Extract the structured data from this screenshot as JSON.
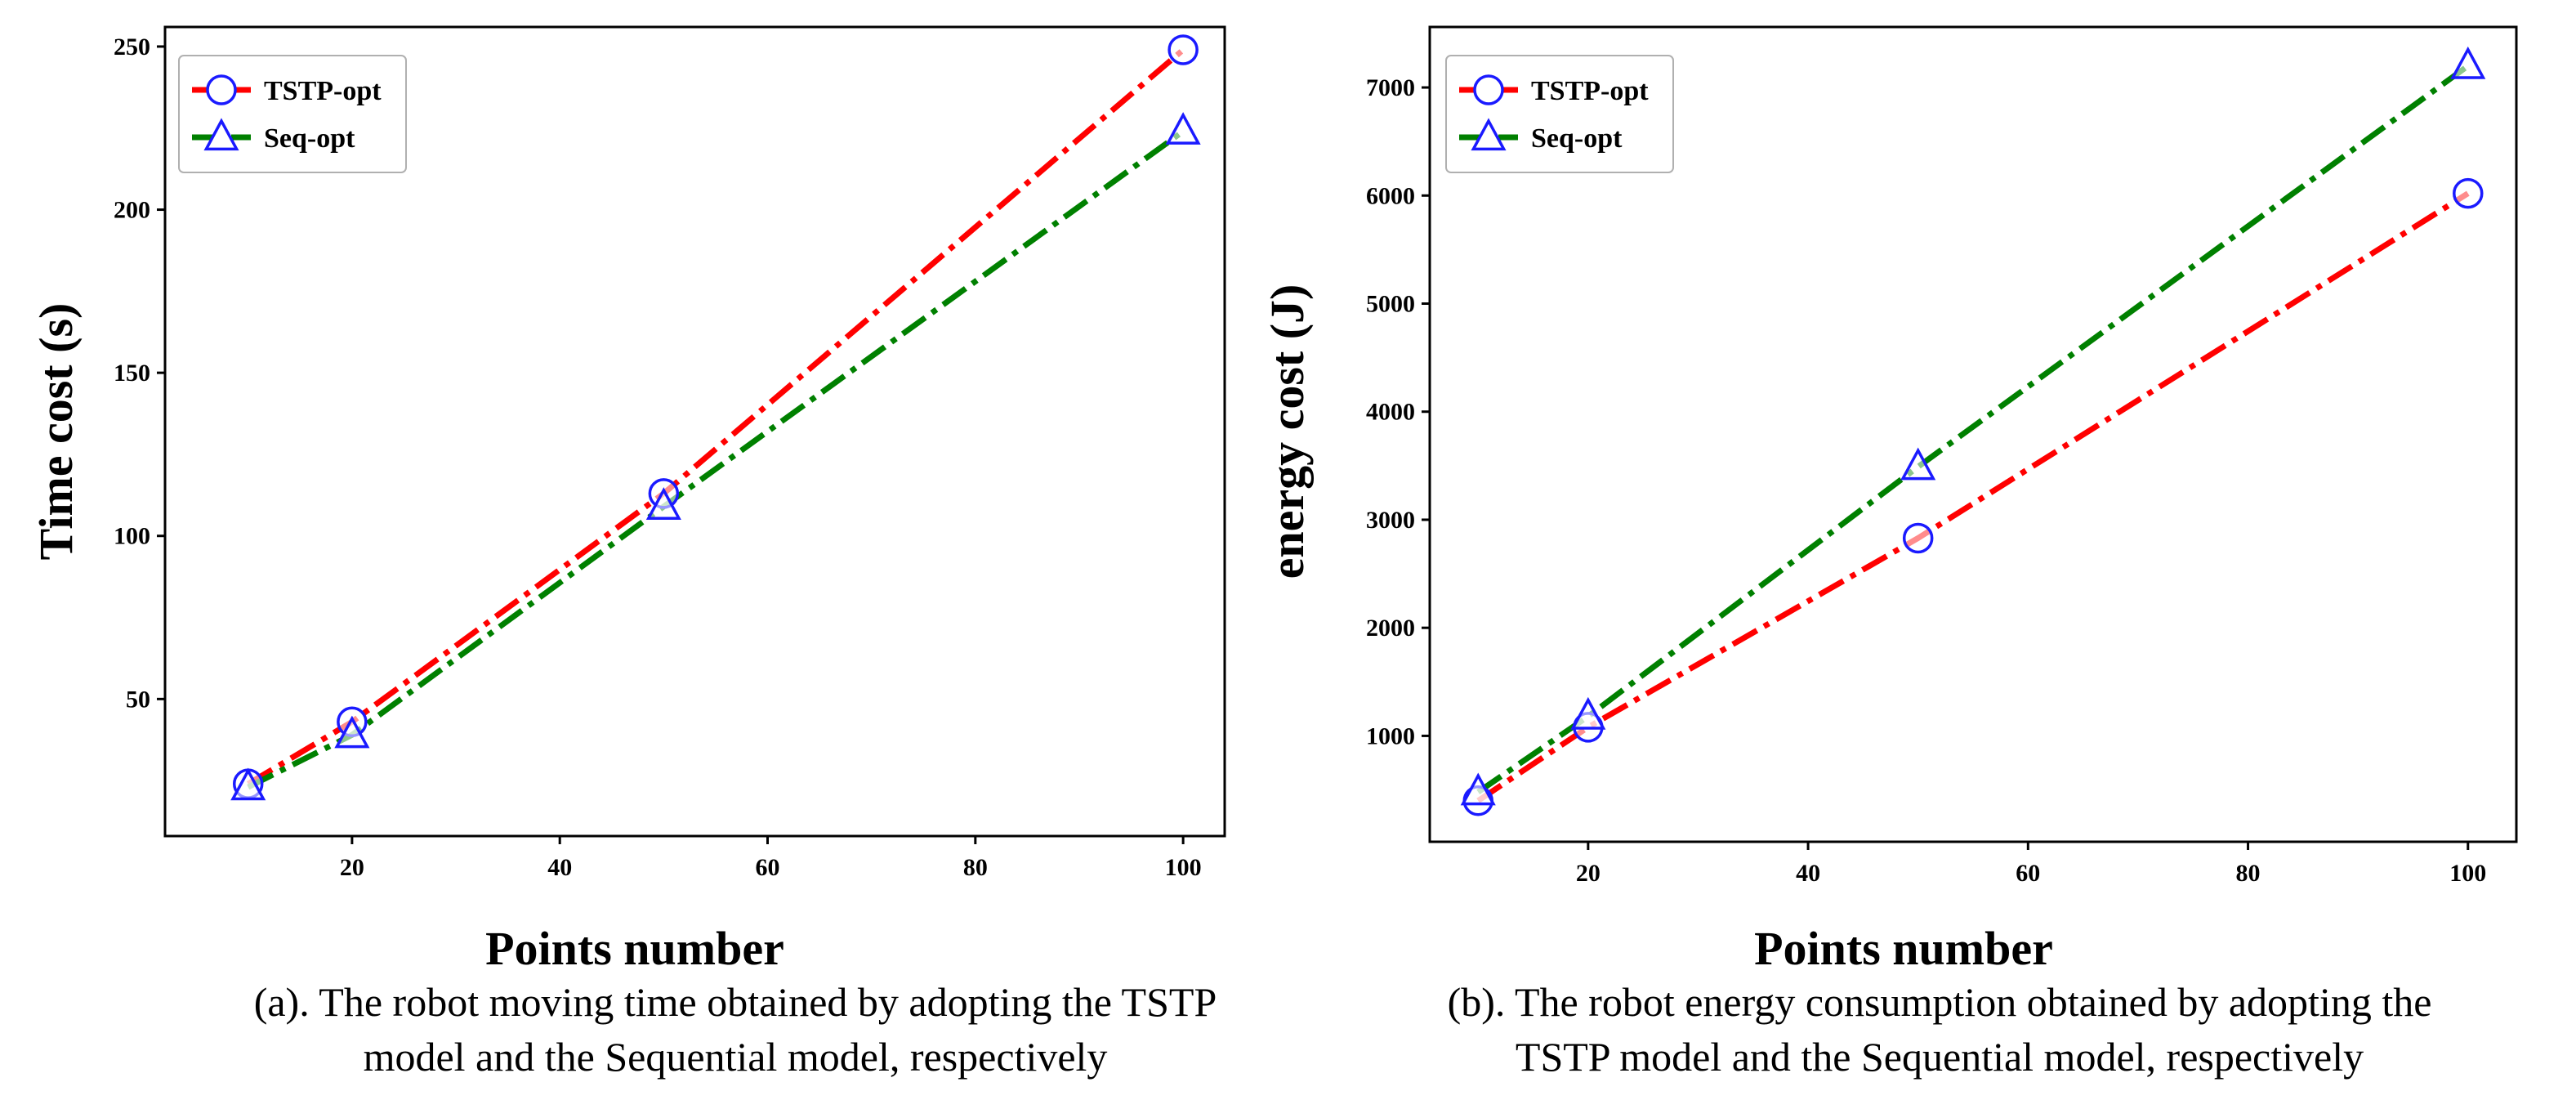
{
  "chart_data": [
    {
      "id": "a",
      "type": "line",
      "x": [
        10,
        20,
        50,
        100
      ],
      "series": [
        {
          "name": "TSTP-opt",
          "values": [
            24,
            43,
            113,
            249
          ],
          "color": "#ff0000",
          "marker": "circle",
          "marker_color": "#1a1aff"
        },
        {
          "name": "Seq-opt",
          "values": [
            23,
            39,
            109,
            224
          ],
          "color": "#008000",
          "marker": "triangle",
          "marker_color": "#1a1aff"
        }
      ],
      "xlabel": "Points number",
      "ylabel": "Time cost (s)",
      "xlim": [
        2,
        104
      ],
      "ylim": [
        8,
        256
      ],
      "xticks": [
        20,
        40,
        60,
        80,
        100
      ],
      "yticks": [
        50,
        100,
        150,
        200,
        250
      ],
      "legend": "top-left",
      "grid": false,
      "caption_lines": [
        "(a). The robot moving time obtained by adopting the TSTP",
        "model and the Sequential model, respectively"
      ]
    },
    {
      "id": "b",
      "type": "line",
      "x": [
        10,
        20,
        50,
        100
      ],
      "series": [
        {
          "name": "TSTP-opt",
          "values": [
            400,
            1080,
            2830,
            6020
          ],
          "color": "#ff0000",
          "marker": "circle",
          "marker_color": "#1a1aff"
        },
        {
          "name": "Seq-opt",
          "values": [
            480,
            1180,
            3490,
            7200
          ],
          "color": "#008000",
          "marker": "triangle",
          "marker_color": "#1a1aff"
        }
      ],
      "xlabel": "Points number",
      "ylabel": "energy cost (J)",
      "xlim": [
        5.6,
        104.4
      ],
      "ylim": [
        20,
        7560
      ],
      "xticks": [
        20,
        40,
        60,
        80,
        100
      ],
      "yticks": [
        1000,
        2000,
        3000,
        4000,
        5000,
        6000,
        7000
      ],
      "legend": "top-left",
      "grid": false,
      "caption_lines": [
        "(b). The robot energy consumption obtained by adopting the",
        "TSTP model and the Sequential model, respectively"
      ]
    }
  ]
}
